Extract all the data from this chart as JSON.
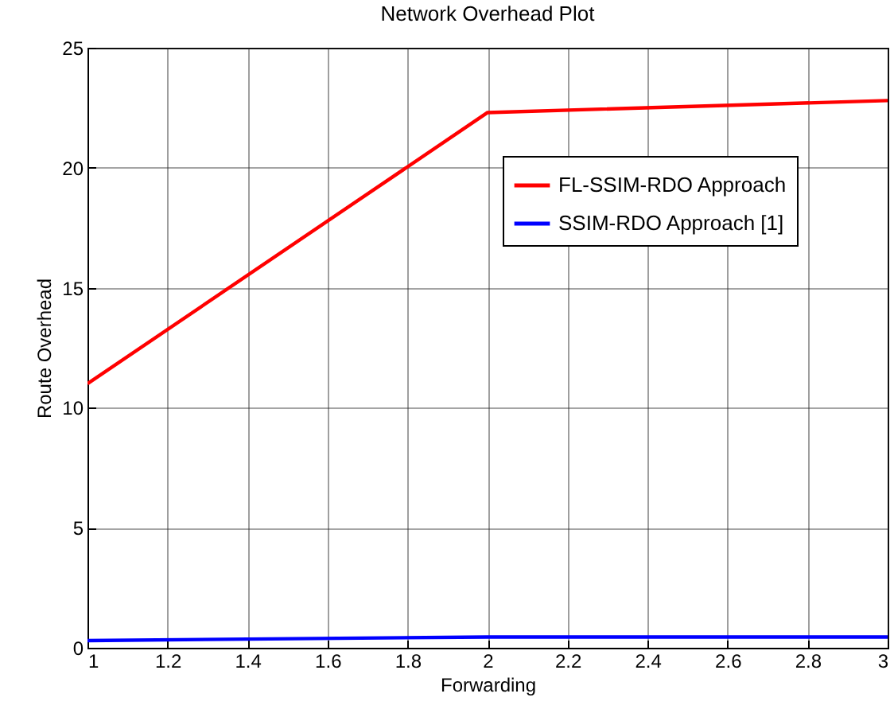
{
  "chart_data": {
    "type": "line",
    "title": "Network Overhead Plot",
    "xlabel": "Forwarding",
    "ylabel": "Route Overhead",
    "x": [
      1,
      2,
      3
    ],
    "series": [
      {
        "name": "FL-SSIM-RDO Approach",
        "color": "#ff0000",
        "values": [
          11,
          22.3,
          22.8
        ]
      },
      {
        "name": "SSIM-RDO Approach [1]",
        "color": "#0000ff",
        "values": [
          0.3,
          0.45,
          0.45
        ]
      }
    ],
    "xlim": [
      1,
      3
    ],
    "xticks": [
      1,
      1.2,
      1.4,
      1.6,
      1.8,
      2,
      2.2,
      2.4,
      2.6,
      2.8,
      3
    ],
    "ylim": [
      0,
      25
    ],
    "yticks": [
      0,
      5,
      10,
      15,
      20,
      25
    ],
    "grid": true,
    "legend": "top right",
    "line_style": "solid",
    "marker": "none"
  }
}
